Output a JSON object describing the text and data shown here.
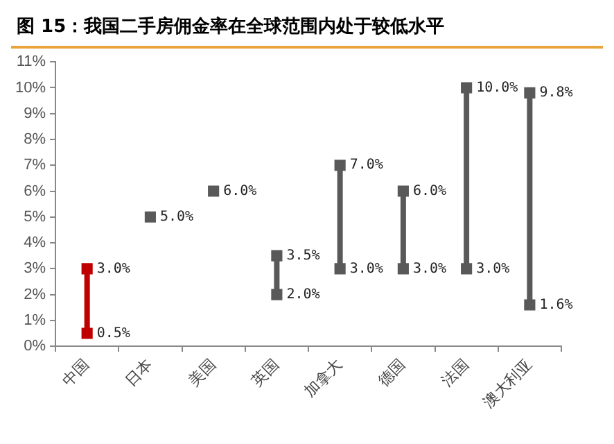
{
  "chart_data": {
    "type": "scatter",
    "title": "图 15：我国二手房佣金率在全球范围内处于较低水平",
    "categories": [
      "中国",
      "日本",
      "美国",
      "英国",
      "加拿大",
      "德国",
      "法国",
      "澳大利亚"
    ],
    "series": [
      {
        "colors": [
          "#c00000",
          "#595959",
          "#595959",
          "#595959",
          "#595959",
          "#595959",
          "#595959",
          "#595959"
        ],
        "values": [
          3.0,
          5.0,
          6.0,
          3.5,
          7.0,
          6.0,
          10.0,
          9.8
        ],
        "value_labels": [
          "3.0%",
          "5.0%",
          "6.0%",
          "3.5%",
          "7.0%",
          "6.0%",
          "10.0%",
          "9.8%"
        ]
      },
      {
        "colors": [
          "#c00000",
          "#595959",
          "#595959",
          "#595959",
          "#595959",
          "#595959",
          "#595959",
          "#595959"
        ],
        "values": [
          0.5,
          null,
          null,
          2.0,
          3.0,
          3.0,
          3.0,
          1.6
        ],
        "value_labels": [
          "0.5%",
          null,
          null,
          "2.0%",
          "3.0%",
          "3.0%",
          "3.0%",
          "1.6%"
        ]
      }
    ],
    "ylim": [
      0,
      11
    ],
    "yticks": [
      {
        "value": 0,
        "label": "0%"
      },
      {
        "value": 1,
        "label": "1%"
      },
      {
        "value": 2,
        "label": "2%"
      },
      {
        "value": 3,
        "label": "3%"
      },
      {
        "value": 4,
        "label": "4%"
      },
      {
        "value": 5,
        "label": "5%"
      },
      {
        "value": 6,
        "label": "6%"
      },
      {
        "value": 7,
        "label": "7%"
      },
      {
        "value": 8,
        "label": "8%"
      },
      {
        "value": 9,
        "label": "9%"
      },
      {
        "value": 10,
        "label": "10%"
      },
      {
        "value": 11,
        "label": "11%"
      }
    ],
    "marker": "square",
    "legend": false
  }
}
